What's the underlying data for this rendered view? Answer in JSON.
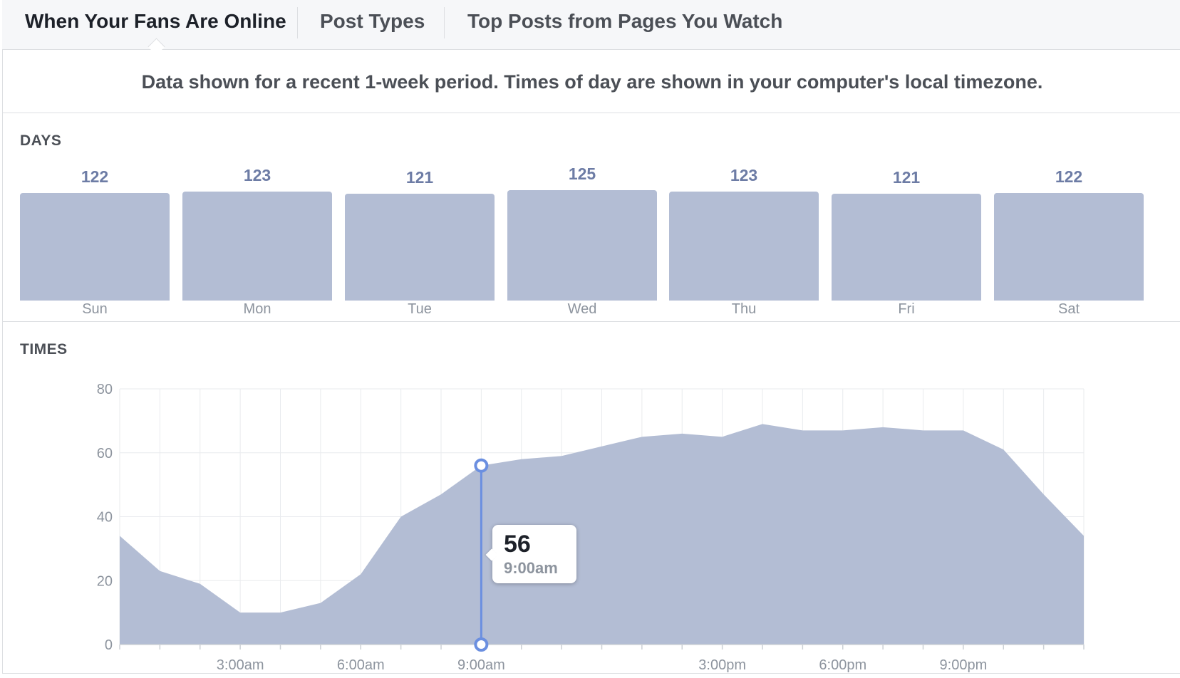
{
  "tabs": [
    {
      "label": "When Your Fans Are Online",
      "active": true
    },
    {
      "label": "Post Types",
      "active": false
    },
    {
      "label": "Top Posts from Pages You Watch",
      "active": false
    }
  ],
  "notice": "Data shown for a recent 1-week period. Times of day are shown in your computer's local timezone.",
  "days_section": {
    "title": "DAYS",
    "days": [
      {
        "name": "Sun",
        "value": 122
      },
      {
        "name": "Mon",
        "value": 123
      },
      {
        "name": "Tue",
        "value": 121
      },
      {
        "name": "Wed",
        "value": 125
      },
      {
        "name": "Thu",
        "value": 123
      },
      {
        "name": "Fri",
        "value": 121
      },
      {
        "name": "Sat",
        "value": 122
      }
    ]
  },
  "times_section": {
    "title": "TIMES",
    "tooltip": {
      "value": "56",
      "time": "9:00am"
    }
  },
  "colors": {
    "bar": "#b3bdd4",
    "area": "#b3bdd4",
    "value_label": "#6d7ca5",
    "highlight": "#6b8fe0"
  },
  "chart_data": {
    "type": "area",
    "title": "",
    "xlabel": "",
    "ylabel": "",
    "x": [
      "12:00am",
      "1:00am",
      "2:00am",
      "3:00am",
      "4:00am",
      "5:00am",
      "6:00am",
      "7:00am",
      "8:00am",
      "9:00am",
      "10:00am",
      "11:00am",
      "12:00pm",
      "1:00pm",
      "2:00pm",
      "3:00pm",
      "4:00pm",
      "5:00pm",
      "6:00pm",
      "7:00pm",
      "8:00pm",
      "9:00pm",
      "10:00pm",
      "11:00pm",
      "12:00am"
    ],
    "xtick_labels": {
      "3": "3:00am",
      "6": "6:00am",
      "9": "9:00am",
      "15": "3:00pm",
      "18": "6:00pm",
      "21": "9:00pm"
    },
    "series": [
      {
        "values": [
          34,
          23,
          19,
          10,
          10,
          13,
          22,
          40,
          47,
          56,
          58,
          59,
          62,
          65,
          66,
          65,
          69,
          67,
          67,
          68,
          67,
          67,
          61,
          47,
          34
        ]
      }
    ],
    "ylim": [
      0,
      80
    ],
    "yticks": [
      0,
      20,
      40,
      60,
      80
    ],
    "grid": true,
    "highlight_index": 9
  }
}
